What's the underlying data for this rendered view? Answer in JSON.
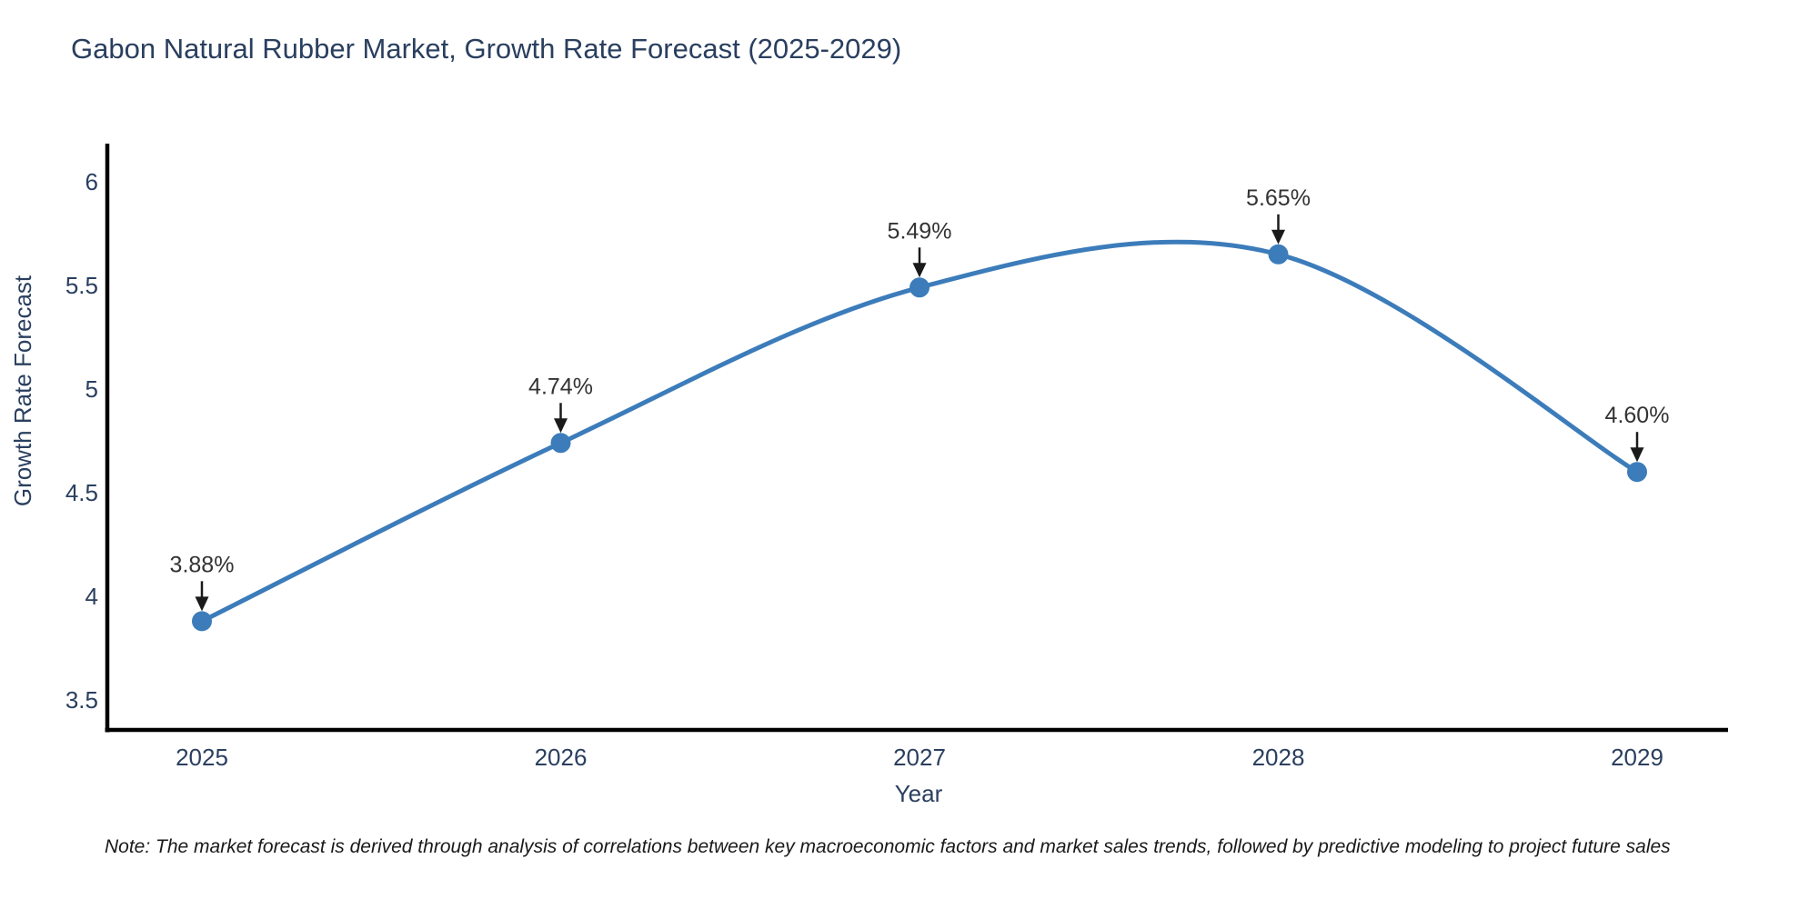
{
  "note": "Note: The market forecast is derived through analysis of correlations between key macroeconomic factors and market sales trends, followed by predictive modeling to project future sales",
  "chart_data": {
    "type": "line",
    "title": "Gabon Natural Rubber Market, Growth Rate Forecast (2025-2029)",
    "xlabel": "Year",
    "ylabel": "Growth Rate Forecast",
    "x": [
      2025,
      2026,
      2027,
      2028,
      2029
    ],
    "values": [
      3.88,
      4.74,
      5.49,
      5.65,
      4.6
    ],
    "point_labels": [
      "3.88%",
      "4.74%",
      "5.49%",
      "5.65%",
      "4.60%"
    ],
    "xticks": [
      "2025",
      "2026",
      "2027",
      "2028",
      "2029"
    ],
    "yticks": [
      3.5,
      4,
      4.5,
      5,
      5.5,
      6
    ],
    "ytick_labels": [
      "3.5",
      "4",
      "4.5",
      "5",
      "5.5",
      "6"
    ],
    "xlim": [
      2024.74,
      2029.25
    ],
    "ylim": [
      3.36,
      6.18
    ],
    "line_shape": "spline",
    "grid": false,
    "legend_position": "none",
    "colors": {
      "line": "#3c7cba",
      "marker": "#3c7cba",
      "axis": "#000000",
      "axis_text": "#2a3f5f",
      "title_text": "#2a3f5f",
      "annotation_text": "#333333",
      "arrow": "#1a1a1a",
      "background": "#ffffff"
    }
  }
}
